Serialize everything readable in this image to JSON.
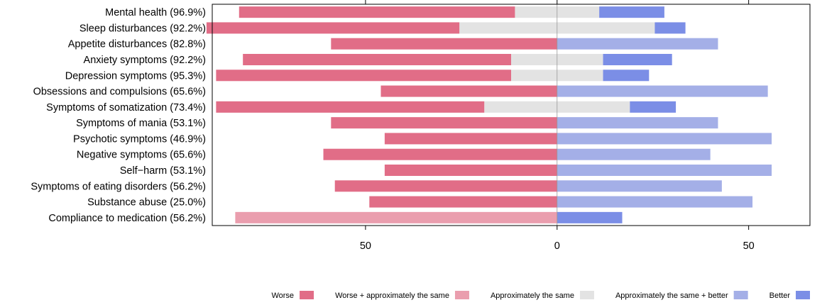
{
  "chart_data": {
    "type": "bar",
    "orientation": "horizontal-diverging",
    "categories": [
      "Mental health (96.9%)",
      "Sleep disturbances (92.2%)",
      "Appetite disturbances (82.8%)",
      "Anxiety symptoms (92.2%)",
      "Depression symptoms (95.3%)",
      "Obsessions and compulsions (65.6%)",
      "Symptoms of somatization (73.4%)",
      "Symptoms of mania (53.1%)",
      "Psychotic symptoms (46.9%)",
      "Negative symptoms (65.6%)",
      "Self−harm (53.1%)",
      "Symptoms of eating disorders (56.2%)",
      "Substance abuse (25.0%)",
      "Compliance to medication (56.2%)"
    ],
    "series": [
      {
        "name": "Worse",
        "color": "#E16D87",
        "side": "left",
        "values": [
          72,
          66,
          59,
          70,
          77,
          46,
          70,
          59,
          45,
          61,
          45,
          58,
          49,
          0
        ]
      },
      {
        "name": "Worse + approximately the same",
        "color": "#EA9EAE",
        "side": "left",
        "values": [
          0,
          0,
          0,
          0,
          0,
          0,
          0,
          0,
          0,
          0,
          0,
          0,
          0,
          84
        ]
      },
      {
        "name": "Approximately the same",
        "color": "#E3E3E3",
        "side": "split",
        "values": [
          22,
          51,
          0,
          24,
          24,
          0,
          38,
          0,
          0,
          0,
          0,
          0,
          0,
          0
        ]
      },
      {
        "name": "Approximately the same + better",
        "color": "#A4AFE7",
        "side": "right",
        "values": [
          0,
          0,
          42,
          0,
          0,
          55,
          0,
          42,
          56,
          40,
          56,
          43,
          51,
          0
        ]
      },
      {
        "name": "Better",
        "color": "#7B8EE6",
        "side": "right",
        "values": [
          17,
          8,
          0,
          18,
          12,
          0,
          12,
          0,
          0,
          0,
          0,
          0,
          0,
          17
        ]
      }
    ],
    "xlim": [
      -90,
      66
    ],
    "xticks": [
      -50,
      0,
      50
    ],
    "xtick_labels": [
      "50",
      "0",
      "50"
    ],
    "xlabel": "",
    "ylabel": "",
    "title": "",
    "legend_position": "bottom-right",
    "grid": false
  }
}
